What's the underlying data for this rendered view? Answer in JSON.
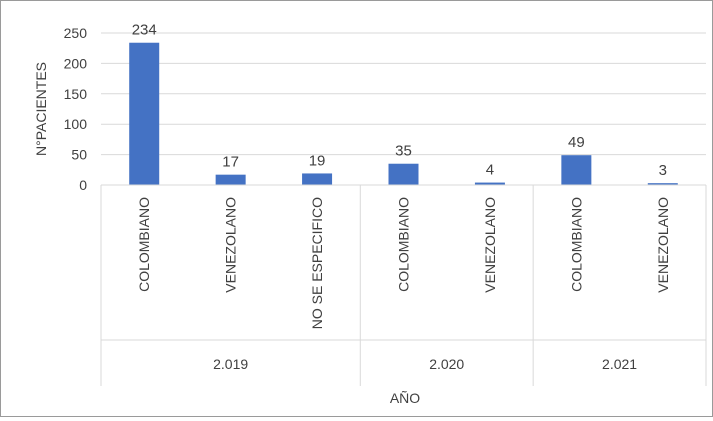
{
  "chart_data": {
    "type": "bar",
    "groups": [
      {
        "label": "2.019",
        "categories": [
          "COLOMBIANO",
          "VENEZOLANO",
          "NO SE ESPECIFICO"
        ],
        "values": [
          234,
          17,
          19
        ]
      },
      {
        "label": "2.020",
        "categories": [
          "COLOMBIANO",
          "VENEZOLANO"
        ],
        "values": [
          35,
          4
        ]
      },
      {
        "label": "2.021",
        "categories": [
          "COLOMBIANO",
          "VENEZOLANO"
        ],
        "values": [
          49,
          3
        ]
      }
    ],
    "xlabel": "AÑO",
    "ylabel": "N°PACIENTES",
    "ylim": [
      0,
      250
    ],
    "yticks": [
      0,
      50,
      100,
      150,
      200,
      250
    ],
    "grid": true,
    "legend": "none",
    "bar_color": "#4472c4",
    "grid_color": "#d9d9d9"
  }
}
